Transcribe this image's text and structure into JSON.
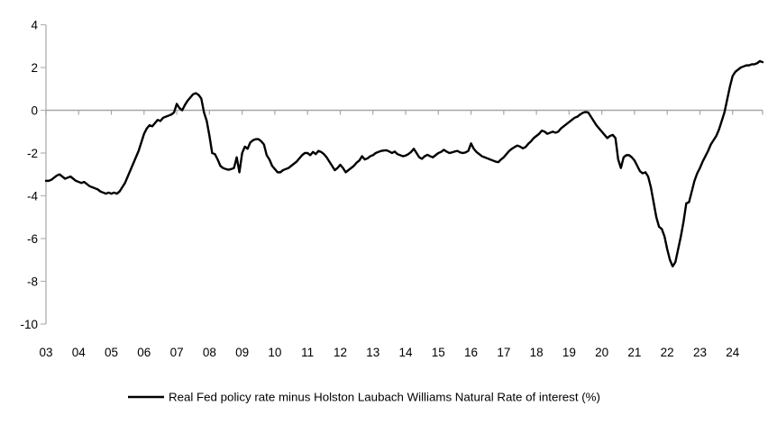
{
  "chart_data": {
    "type": "line",
    "title": "",
    "xlabel": "",
    "ylabel": "",
    "legend": {
      "label": "Real Fed policy rate minus Holston Laubach Williams Natural Rate of interest (%)",
      "position": "bottom-center"
    },
    "y_axis": {
      "min": -10,
      "max": 4,
      "ticks": [
        4,
        2,
        0,
        -2,
        -4,
        -6,
        -8,
        -10
      ],
      "gridlines": false,
      "zero_line": true
    },
    "x_axis": {
      "unit": "year",
      "tick_labels": [
        "03",
        "04",
        "05",
        "06",
        "07",
        "08",
        "09",
        "10",
        "11",
        "12",
        "13",
        "14",
        "15",
        "16",
        "17",
        "18",
        "19",
        "20",
        "21",
        "22",
        "23",
        "24"
      ]
    },
    "series": [
      {
        "name": "Real Fed policy rate minus Holston Laubach Williams Natural Rate of interest (%)",
        "color": "#000000",
        "start": "2003-01",
        "frequency": "monthly",
        "values": [
          -3.3,
          -3.3,
          -3.25,
          -3.15,
          -3.05,
          -3.0,
          -3.1,
          -3.2,
          -3.15,
          -3.1,
          -3.2,
          -3.3,
          -3.35,
          -3.4,
          -3.35,
          -3.45,
          -3.55,
          -3.6,
          -3.65,
          -3.7,
          -3.8,
          -3.85,
          -3.9,
          -3.85,
          -3.9,
          -3.85,
          -3.9,
          -3.8,
          -3.6,
          -3.4,
          -3.1,
          -2.8,
          -2.5,
          -2.2,
          -1.9,
          -1.5,
          -1.1,
          -0.85,
          -0.7,
          -0.75,
          -0.6,
          -0.45,
          -0.5,
          -0.35,
          -0.3,
          -0.25,
          -0.2,
          -0.1,
          0.3,
          0.1,
          0.0,
          0.25,
          0.45,
          0.6,
          0.75,
          0.8,
          0.72,
          0.55,
          -0.1,
          -0.5,
          -1.2,
          -2.0,
          -2.05,
          -2.3,
          -2.6,
          -2.7,
          -2.75,
          -2.78,
          -2.75,
          -2.7,
          -2.2,
          -2.9,
          -2.0,
          -1.7,
          -1.8,
          -1.5,
          -1.4,
          -1.35,
          -1.35,
          -1.45,
          -1.6,
          -2.1,
          -2.3,
          -2.6,
          -2.75,
          -2.9,
          -2.9,
          -2.8,
          -2.75,
          -2.7,
          -2.6,
          -2.5,
          -2.4,
          -2.25,
          -2.1,
          -2.0,
          -2.0,
          -2.1,
          -1.95,
          -2.05,
          -1.9,
          -1.95,
          -2.05,
          -2.2,
          -2.4,
          -2.6,
          -2.8,
          -2.7,
          -2.55,
          -2.7,
          -2.9,
          -2.8,
          -2.7,
          -2.6,
          -2.45,
          -2.35,
          -2.15,
          -2.3,
          -2.25,
          -2.15,
          -2.1,
          -2.0,
          -1.95,
          -1.9,
          -1.88,
          -1.87,
          -1.93,
          -2.0,
          -1.93,
          -2.05,
          -2.1,
          -2.15,
          -2.12,
          -2.05,
          -1.95,
          -1.8,
          -2.0,
          -2.2,
          -2.27,
          -2.15,
          -2.08,
          -2.15,
          -2.2,
          -2.1,
          -2.0,
          -1.95,
          -1.85,
          -1.93,
          -2.0,
          -1.97,
          -1.93,
          -1.9,
          -1.97,
          -2.0,
          -1.97,
          -1.9,
          -1.55,
          -1.8,
          -1.95,
          -2.05,
          -2.15,
          -2.2,
          -2.25,
          -2.3,
          -2.35,
          -2.4,
          -2.43,
          -2.3,
          -2.2,
          -2.05,
          -1.9,
          -1.8,
          -1.72,
          -1.65,
          -1.7,
          -1.78,
          -1.72,
          -1.57,
          -1.45,
          -1.3,
          -1.2,
          -1.1,
          -0.95,
          -1.0,
          -1.1,
          -1.05,
          -1.0,
          -1.05,
          -1.0,
          -0.85,
          -0.75,
          -0.65,
          -0.55,
          -0.45,
          -0.35,
          -0.3,
          -0.2,
          -0.12,
          -0.08,
          -0.1,
          -0.3,
          -0.5,
          -0.7,
          -0.85,
          -1.0,
          -1.15,
          -1.3,
          -1.2,
          -1.15,
          -1.3,
          -2.3,
          -2.7,
          -2.2,
          -2.1,
          -2.1,
          -2.2,
          -2.35,
          -2.6,
          -2.85,
          -2.95,
          -2.9,
          -3.1,
          -3.6,
          -4.3,
          -5.0,
          -5.45,
          -5.55,
          -5.9,
          -6.5,
          -7.0,
          -7.3,
          -7.1,
          -6.5,
          -5.9,
          -5.2,
          -4.35,
          -4.3,
          -3.8,
          -3.3,
          -2.95,
          -2.7,
          -2.4,
          -2.15,
          -1.9,
          -1.6,
          -1.4,
          -1.2,
          -0.9,
          -0.5,
          -0.1,
          0.5,
          1.1,
          1.6,
          1.8,
          1.9,
          2.0,
          2.05,
          2.1,
          2.1,
          2.15,
          2.15,
          2.2,
          2.3,
          2.25
        ]
      }
    ],
    "colors": {
      "background": "#ffffff",
      "axis": "#b3b3b3",
      "zero_line": "#a6a6a6",
      "line": "#000000",
      "text": "#000000"
    }
  }
}
